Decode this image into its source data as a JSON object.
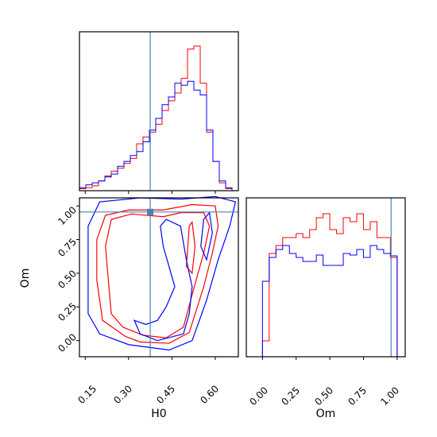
{
  "chart_data": {
    "type": "corner",
    "parameters": [
      "H0",
      "Om"
    ],
    "truths": {
      "H0": 0.375,
      "Om": 0.955
    },
    "colors": {
      "series_a": "#ff0000",
      "series_b": "#0000ff",
      "truth": "#4682b4"
    },
    "axes": {
      "H0": {
        "xlabel": "H0",
        "range": [
          0.13,
          0.68
        ],
        "ticks": [
          0.15,
          0.3,
          0.45,
          0.6
        ],
        "tick_labels": [
          "0.15",
          "0.30",
          "0.45",
          "0.60"
        ]
      },
      "Om": {
        "label": "Om",
        "range": [
          -0.12,
          1.06
        ],
        "ticks": [
          0.0,
          0.25,
          0.5,
          0.75,
          1.0
        ],
        "tick_labels": [
          "0.00",
          "0.25",
          "0.50",
          "0.75",
          "1.00"
        ]
      }
    },
    "histograms": {
      "H0": {
        "bin_edges": [
          0.13,
          0.152,
          0.174,
          0.196,
          0.218,
          0.24,
          0.262,
          0.284,
          0.306,
          0.328,
          0.35,
          0.372,
          0.394,
          0.416,
          0.438,
          0.46,
          0.482,
          0.504,
          0.526,
          0.548,
          0.57,
          0.592,
          0.614,
          0.636,
          0.658,
          0.68
        ],
        "series_a_counts": [
          2,
          3,
          5,
          10,
          15,
          20,
          23,
          28,
          33,
          48,
          55,
          60,
          68,
          82,
          92,
          100,
          115,
          145,
          148,
          110,
          60,
          30,
          8,
          2,
          0
        ],
        "series_b_counts": [
          3,
          6,
          8,
          10,
          14,
          17,
          25,
          30,
          36,
          40,
          50,
          62,
          74,
          88,
          96,
          110,
          108,
          112,
          103,
          98,
          62,
          30,
          10,
          3,
          0
        ]
      },
      "Om": {
        "bin_edges": [
          0.0,
          0.05,
          0.1,
          0.15,
          0.2,
          0.25,
          0.3,
          0.35,
          0.4,
          0.45,
          0.5,
          0.55,
          0.6,
          0.65,
          0.7,
          0.75,
          0.8,
          0.85,
          0.9,
          0.95,
          1.0
        ],
        "series_a_counts": [
          20,
          130,
          140,
          150,
          150,
          155,
          150,
          160,
          175,
          180,
          160,
          155,
          175,
          170,
          180,
          160,
          170,
          150,
          150,
          125
        ],
        "series_b_counts": [
          95,
          125,
          135,
          140,
          130,
          125,
          120,
          120,
          128,
          115,
          115,
          115,
          130,
          128,
          135,
          125,
          140,
          135,
          130,
          127
        ]
      }
    },
    "contours_2d": {
      "series_a": [
        [
          [
            0.29,
            0.03
          ],
          [
            0.34,
            -0.01
          ],
          [
            0.44,
            -0.02
          ],
          [
            0.51,
            0.06
          ],
          [
            0.56,
            0.4
          ],
          [
            0.59,
            0.65
          ],
          [
            0.61,
            0.85
          ],
          [
            0.6,
            1.0
          ],
          [
            0.52,
            1.01
          ],
          [
            0.42,
            0.97
          ],
          [
            0.3,
            0.97
          ],
          [
            0.22,
            0.93
          ],
          [
            0.19,
            0.75
          ],
          [
            0.19,
            0.45
          ],
          [
            0.21,
            0.15
          ]
        ],
        [
          [
            0.28,
            0.1
          ],
          [
            0.35,
            0.04
          ],
          [
            0.43,
            0.02
          ],
          [
            0.49,
            0.1
          ],
          [
            0.53,
            0.42
          ],
          [
            0.56,
            0.65
          ],
          [
            0.58,
            0.85
          ],
          [
            0.56,
            0.95
          ],
          [
            0.48,
            0.95
          ],
          [
            0.42,
            0.92
          ],
          [
            0.31,
            0.94
          ],
          [
            0.24,
            0.9
          ],
          [
            0.22,
            0.7
          ],
          [
            0.23,
            0.45
          ],
          [
            0.24,
            0.2
          ]
        ],
        [
          [
            0.5,
            0.55
          ],
          [
            0.51,
            0.85
          ],
          [
            0.52,
            0.88
          ],
          [
            0.53,
            0.7
          ],
          [
            0.52,
            0.5
          ]
        ]
      ],
      "series_b": [
        [
          [
            0.2,
            0.05
          ],
          [
            0.3,
            -0.03
          ],
          [
            0.44,
            -0.07
          ],
          [
            0.52,
            0.0
          ],
          [
            0.57,
            0.3
          ],
          [
            0.61,
            0.6
          ],
          [
            0.65,
            0.85
          ],
          [
            0.67,
            1.03
          ],
          [
            0.6,
            1.07
          ],
          [
            0.48,
            1.05
          ],
          [
            0.34,
            1.06
          ],
          [
            0.2,
            1.03
          ],
          [
            0.16,
            0.85
          ],
          [
            0.16,
            0.5
          ],
          [
            0.16,
            0.2
          ]
        ],
        [
          [
            0.32,
            0.15
          ],
          [
            0.36,
            0.12
          ],
          [
            0.4,
            0.15
          ],
          [
            0.43,
            0.25
          ],
          [
            0.46,
            0.4
          ],
          [
            0.44,
            0.55
          ],
          [
            0.42,
            0.7
          ],
          [
            0.41,
            0.85
          ],
          [
            0.43,
            0.9
          ],
          [
            0.48,
            0.85
          ],
          [
            0.5,
            0.6
          ],
          [
            0.52,
            0.4
          ],
          [
            0.51,
            0.2
          ],
          [
            0.49,
            0.05
          ],
          [
            0.4,
            0.0
          ],
          [
            0.34,
            0.05
          ]
        ],
        [
          [
            0.55,
            0.7
          ],
          [
            0.56,
            0.9
          ],
          [
            0.58,
            0.95
          ],
          [
            0.59,
            0.8
          ],
          [
            0.57,
            0.6
          ]
        ]
      ]
    }
  }
}
